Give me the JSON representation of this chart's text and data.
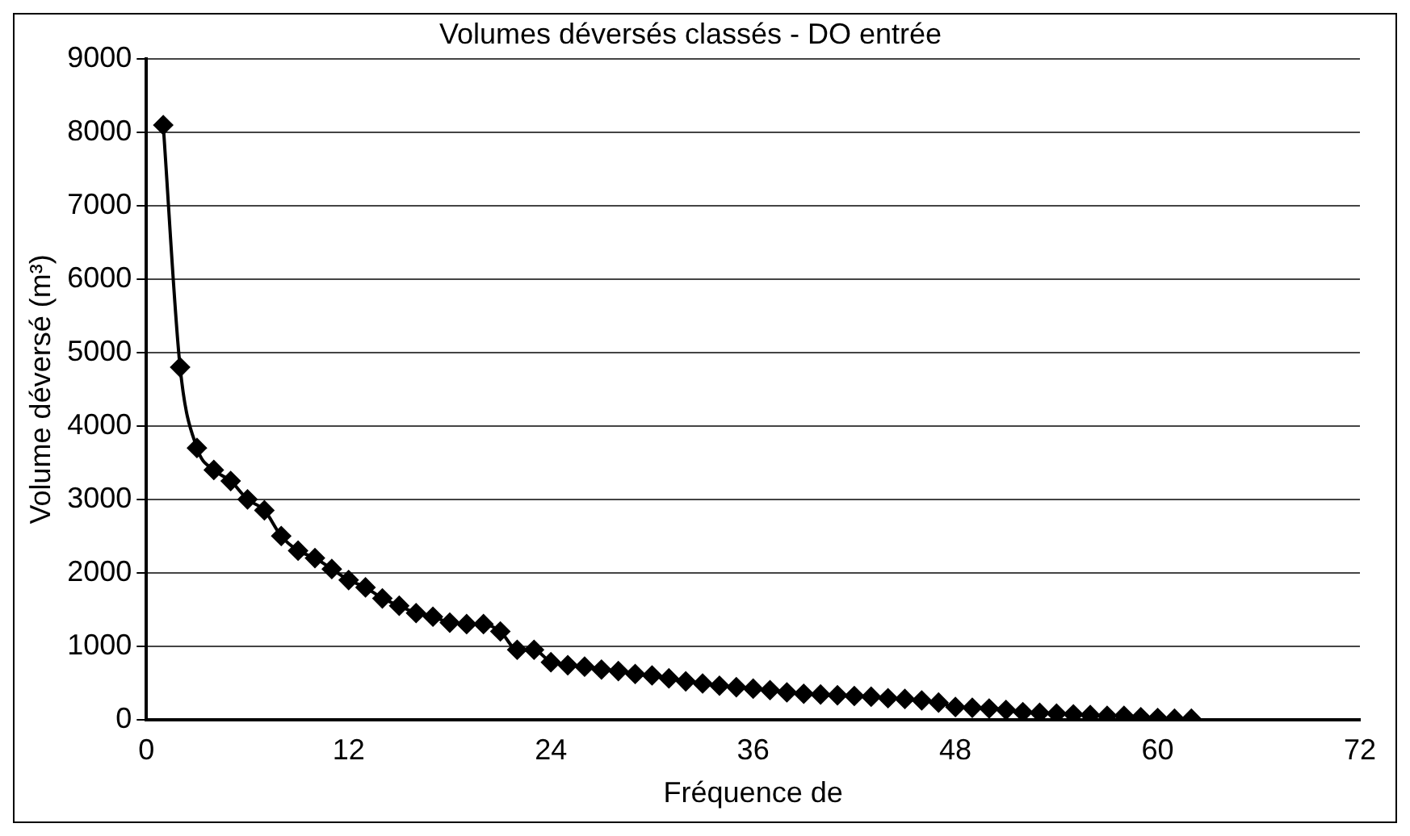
{
  "chart_data": {
    "type": "line",
    "title": "Volumes déversés classés - DO entrée",
    "xlabel": "Fréquence de",
    "ylabel": "Volume déversé (m³)",
    "x": [
      1,
      2,
      3,
      4,
      5,
      6,
      7,
      8,
      9,
      10,
      11,
      12,
      13,
      14,
      15,
      16,
      17,
      18,
      19,
      20,
      21,
      22,
      23,
      24,
      25,
      26,
      27,
      28,
      29,
      30,
      31,
      32,
      33,
      34,
      35,
      36,
      37,
      38,
      39,
      40,
      41,
      42,
      43,
      44,
      45,
      46,
      47,
      48,
      49,
      50,
      51,
      52,
      53,
      54,
      55,
      56,
      57,
      58,
      59,
      60,
      61,
      62
    ],
    "series": [
      {
        "color": "#000000",
        "values": [
          8100,
          4800,
          3700,
          3400,
          3250,
          3000,
          2850,
          2500,
          2300,
          2200,
          2050,
          1900,
          1800,
          1650,
          1550,
          1450,
          1400,
          1320,
          1300,
          1300,
          1200,
          950,
          950,
          780,
          740,
          720,
          680,
          660,
          620,
          600,
          560,
          520,
          490,
          460,
          440,
          420,
          400,
          370,
          350,
          340,
          330,
          320,
          310,
          290,
          280,
          260,
          230,
          170,
          160,
          150,
          130,
          100,
          90,
          80,
          70,
          60,
          50,
          50,
          30,
          20,
          10,
          10
        ]
      }
    ],
    "xlim": [
      0,
      72
    ],
    "xticks": [
      0,
      12,
      24,
      36,
      48,
      60,
      72
    ],
    "ylim": [
      0,
      9000
    ],
    "yticks": [
      0,
      1000,
      2000,
      3000,
      4000,
      5000,
      6000,
      7000,
      8000,
      9000
    ],
    "grid": "y",
    "marker": "diamond",
    "line_style": "solid",
    "legend": false
  }
}
